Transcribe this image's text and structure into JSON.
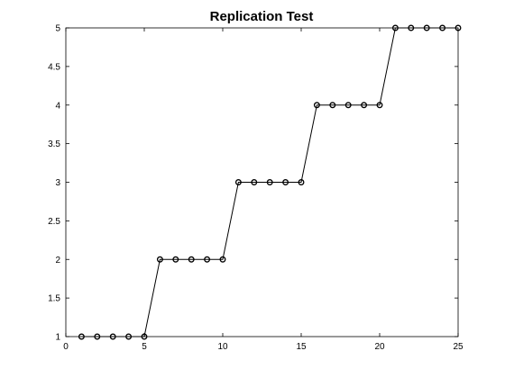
{
  "chart_data": {
    "type": "line",
    "title": "Replication Test",
    "xlabel": "",
    "ylabel": "",
    "xlim": [
      0,
      25
    ],
    "ylim": [
      1,
      5
    ],
    "x_ticks": [
      0,
      5,
      10,
      15,
      20,
      25
    ],
    "x_tick_labels": [
      "0",
      "5",
      "10",
      "15",
      "20",
      "25"
    ],
    "y_ticks": [
      1,
      1.5,
      2,
      2.5,
      3,
      3.5,
      4,
      4.5,
      5
    ],
    "y_tick_labels": [
      "1",
      "1.5",
      "2",
      "2.5",
      "3",
      "3.5",
      "4",
      "4.5",
      "5"
    ],
    "grid": false,
    "legend": false,
    "marker": "circle",
    "line_color": "#000000",
    "series": [
      {
        "x": [
          1,
          2,
          3,
          4,
          5,
          6,
          7,
          8,
          9,
          10,
          11,
          12,
          13,
          14,
          15,
          16,
          17,
          18,
          19,
          20,
          21,
          22,
          23,
          24,
          25
        ],
        "y": [
          1,
          1,
          1,
          1,
          1,
          2,
          2,
          2,
          2,
          2,
          3,
          3,
          3,
          3,
          3,
          4,
          4,
          4,
          4,
          4,
          5,
          5,
          5,
          5,
          5
        ]
      }
    ]
  }
}
